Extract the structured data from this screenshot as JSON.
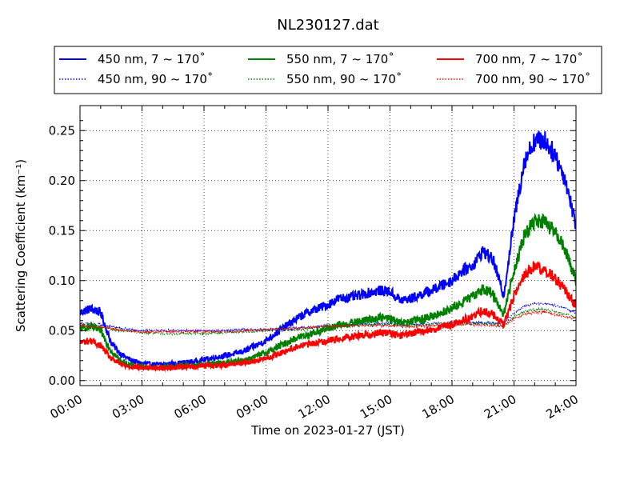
{
  "chart_data": {
    "type": "line",
    "title": "NL230127.dat",
    "xlabel": "Time on 2023-01-27 (JST)",
    "ylabel": "Scattering Coefficient (km⁻¹)",
    "xlim": [
      0,
      24
    ],
    "ylim": [
      -0.005,
      0.275
    ],
    "xticks": [
      0,
      3,
      6,
      9,
      12,
      15,
      18,
      21,
      24
    ],
    "xtick_labels": [
      "00:00",
      "03:00",
      "06:00",
      "09:00",
      "12:00",
      "15:00",
      "18:00",
      "21:00",
      "24:00"
    ],
    "yticks": [
      0.0,
      0.05,
      0.1,
      0.15,
      0.2,
      0.25
    ],
    "ytick_labels": [
      "0.00",
      "0.05",
      "0.10",
      "0.15",
      "0.20",
      "0.25"
    ],
    "grid": true,
    "legend_position": "top",
    "series": [
      {
        "name": "450 nm, 7 ~ 170˚",
        "color": "#0000ff",
        "style": "solid",
        "x": [
          0,
          0.5,
          1.0,
          1.5,
          2.0,
          2.5,
          3.0,
          3.5,
          4.0,
          4.5,
          5.0,
          5.5,
          6.0,
          6.5,
          7.0,
          7.5,
          8.0,
          8.5,
          9.0,
          9.5,
          10.0,
          10.5,
          11.0,
          11.5,
          12.0,
          12.5,
          13.0,
          13.5,
          14.0,
          14.5,
          15.0,
          15.5,
          16.0,
          16.5,
          17.0,
          17.5,
          18.0,
          18.5,
          19.0,
          19.5,
          20.0,
          20.5,
          21.0,
          21.5,
          22.0,
          22.5,
          23.0,
          23.5,
          24.0
        ],
        "y": [
          0.068,
          0.072,
          0.068,
          0.038,
          0.026,
          0.02,
          0.017,
          0.016,
          0.016,
          0.017,
          0.018,
          0.019,
          0.021,
          0.023,
          0.025,
          0.027,
          0.03,
          0.035,
          0.04,
          0.048,
          0.055,
          0.062,
          0.068,
          0.072,
          0.076,
          0.082,
          0.083,
          0.085,
          0.088,
          0.09,
          0.089,
          0.08,
          0.082,
          0.086,
          0.09,
          0.095,
          0.1,
          0.11,
          0.115,
          0.13,
          0.12,
          0.085,
          0.16,
          0.22,
          0.24,
          0.24,
          0.225,
          0.2,
          0.155
        ]
      },
      {
        "name": "450 nm, 90 ~ 170˚",
        "color": "#0000ff",
        "style": "dotted",
        "x": [
          0,
          1.0,
          2.0,
          3.0,
          4.0,
          5.0,
          6.0,
          7.0,
          8.0,
          9.0,
          10.0,
          11.0,
          12.0,
          13.0,
          14.0,
          15.0,
          16.0,
          17.0,
          18.0,
          19.0,
          20.0,
          20.5,
          21.0,
          21.5,
          22.0,
          22.5,
          23.0,
          23.5,
          24.0
        ],
        "y": [
          0.057,
          0.056,
          0.052,
          0.05,
          0.05,
          0.05,
          0.05,
          0.05,
          0.051,
          0.051,
          0.052,
          0.053,
          0.055,
          0.056,
          0.057,
          0.057,
          0.056,
          0.057,
          0.058,
          0.058,
          0.058,
          0.057,
          0.068,
          0.074,
          0.077,
          0.077,
          0.075,
          0.072,
          0.068
        ]
      },
      {
        "name": "550 nm, 7 ~ 170˚",
        "color": "#008000",
        "style": "solid",
        "x": [
          0,
          0.5,
          1.0,
          1.5,
          2.0,
          2.5,
          3.0,
          3.5,
          4.0,
          4.5,
          5.0,
          5.5,
          6.0,
          6.5,
          7.0,
          7.5,
          8.0,
          8.5,
          9.0,
          9.5,
          10.0,
          10.5,
          11.0,
          11.5,
          12.0,
          12.5,
          13.0,
          13.5,
          14.0,
          14.5,
          15.0,
          15.5,
          16.0,
          16.5,
          17.0,
          17.5,
          18.0,
          18.5,
          19.0,
          19.5,
          20.0,
          20.5,
          21.0,
          21.5,
          22.0,
          22.5,
          23.0,
          23.5,
          24.0
        ],
        "y": [
          0.052,
          0.054,
          0.05,
          0.03,
          0.019,
          0.015,
          0.014,
          0.013,
          0.013,
          0.014,
          0.015,
          0.015,
          0.016,
          0.017,
          0.018,
          0.019,
          0.021,
          0.024,
          0.028,
          0.033,
          0.038,
          0.043,
          0.046,
          0.049,
          0.052,
          0.055,
          0.057,
          0.059,
          0.061,
          0.063,
          0.062,
          0.057,
          0.059,
          0.061,
          0.064,
          0.068,
          0.072,
          0.078,
          0.084,
          0.092,
          0.086,
          0.066,
          0.11,
          0.145,
          0.16,
          0.158,
          0.148,
          0.13,
          0.1
        ]
      },
      {
        "name": "550 nm, 90 ~ 170˚",
        "color": "#008000",
        "style": "dotted",
        "x": [
          0,
          1.0,
          2.0,
          3.0,
          4.0,
          5.0,
          6.0,
          7.0,
          8.0,
          9.0,
          10.0,
          11.0,
          12.0,
          13.0,
          14.0,
          15.0,
          16.0,
          17.0,
          18.0,
          19.0,
          20.0,
          20.5,
          21.0,
          21.5,
          22.0,
          22.5,
          23.0,
          23.5,
          24.0
        ],
        "y": [
          0.055,
          0.053,
          0.05,
          0.048,
          0.047,
          0.047,
          0.047,
          0.048,
          0.049,
          0.05,
          0.051,
          0.052,
          0.054,
          0.055,
          0.056,
          0.056,
          0.055,
          0.056,
          0.057,
          0.057,
          0.057,
          0.055,
          0.064,
          0.069,
          0.071,
          0.071,
          0.069,
          0.066,
          0.063
        ]
      },
      {
        "name": "700 nm, 7 ~ 170˚",
        "color": "#ff0000",
        "style": "solid",
        "x": [
          0,
          0.5,
          1.0,
          1.5,
          2.0,
          2.5,
          3.0,
          3.5,
          4.0,
          4.5,
          5.0,
          5.5,
          6.0,
          6.5,
          7.0,
          7.5,
          8.0,
          8.5,
          9.0,
          9.5,
          10.0,
          10.5,
          11.0,
          11.5,
          12.0,
          12.5,
          13.0,
          13.5,
          14.0,
          14.5,
          15.0,
          15.5,
          16.0,
          16.5,
          17.0,
          17.5,
          18.0,
          18.5,
          19.0,
          19.5,
          20.0,
          20.5,
          21.0,
          21.5,
          22.0,
          22.5,
          23.0,
          23.5,
          24.0
        ],
        "y": [
          0.038,
          0.04,
          0.035,
          0.022,
          0.016,
          0.014,
          0.013,
          0.013,
          0.013,
          0.013,
          0.014,
          0.014,
          0.015,
          0.015,
          0.016,
          0.017,
          0.018,
          0.02,
          0.022,
          0.026,
          0.03,
          0.034,
          0.036,
          0.038,
          0.04,
          0.042,
          0.044,
          0.045,
          0.046,
          0.048,
          0.047,
          0.045,
          0.047,
          0.049,
          0.051,
          0.053,
          0.056,
          0.06,
          0.064,
          0.07,
          0.066,
          0.055,
          0.085,
          0.105,
          0.115,
          0.11,
          0.102,
          0.09,
          0.075
        ]
      },
      {
        "name": "700 nm, 90 ~ 170˚",
        "color": "#ff0000",
        "style": "dotted",
        "x": [
          0,
          1.0,
          2.0,
          3.0,
          4.0,
          5.0,
          6.0,
          7.0,
          8.0,
          9.0,
          10.0,
          11.0,
          12.0,
          13.0,
          14.0,
          15.0,
          16.0,
          17.0,
          18.0,
          19.0,
          20.0,
          20.5,
          21.0,
          21.5,
          22.0,
          22.5,
          23.0,
          23.5,
          24.0
        ],
        "y": [
          0.055,
          0.054,
          0.05,
          0.049,
          0.049,
          0.049,
          0.049,
          0.049,
          0.05,
          0.051,
          0.052,
          0.053,
          0.054,
          0.055,
          0.055,
          0.055,
          0.054,
          0.055,
          0.056,
          0.056,
          0.055,
          0.054,
          0.062,
          0.066,
          0.068,
          0.068,
          0.066,
          0.064,
          0.062
        ]
      }
    ]
  }
}
